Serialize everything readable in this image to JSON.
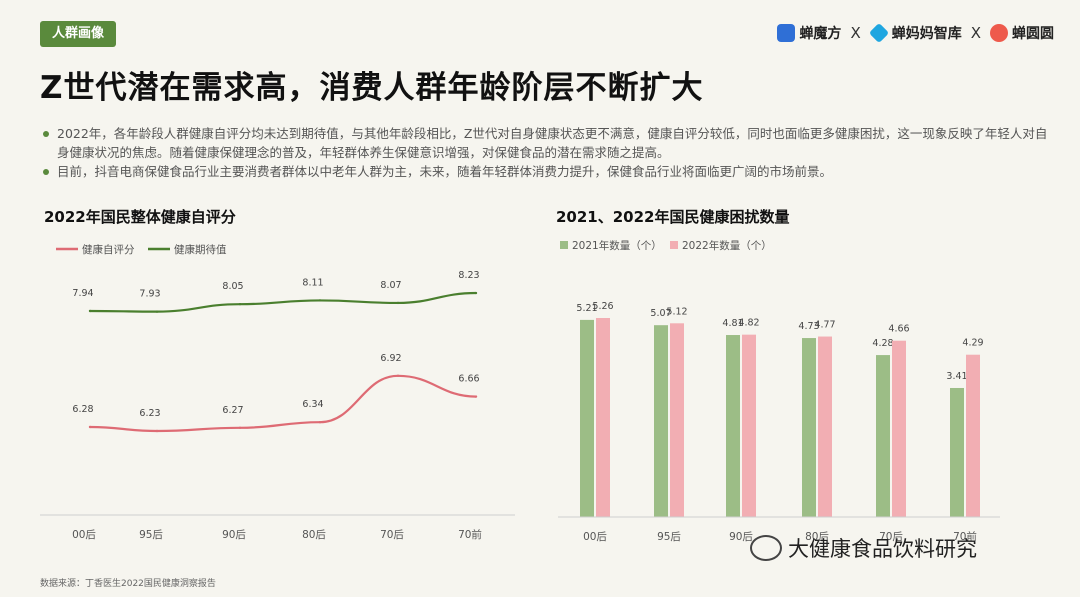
{
  "tag": "人群画像",
  "brands": [
    {
      "name": "蝉魔方",
      "color": "#2f6fd6",
      "icon": "cube-logo-icon"
    },
    {
      "name": "蝉妈妈智库",
      "color": "#1fa6e0",
      "icon": "diamond-logo-icon"
    },
    {
      "name": "蝉圆圆",
      "color": "#ee5a4c",
      "icon": "circle-logo-icon"
    }
  ],
  "separator": "X",
  "title": "Z世代潜在需求高，消费人群年龄阶层不断扩大",
  "bullets": [
    "2022年，各年龄段人群健康自评分均未达到期待值，与其他年龄段相比，Z世代对自身健康状态更不满意，健康自评分较低，同时也面临更多健康困扰，这一现象反映了年轻人对自身健康状况的焦虑。随着健康保健理念的普及，年轻群体养生保健意识增强，对保健食品的潜在需求随之提高。",
    "目前，抖音电商保健食品行业主要消费者群体以中老年人群为主，未来，随着年轻群体消费力提升，保健食品行业将面临更广阔的市场前景。"
  ],
  "source": "数据来源：丁香医生2022国民健康洞察报告",
  "watermark": "大健康食品饮料研究",
  "chart_data": [
    {
      "type": "line",
      "title": "2022年国民整体健康自评分",
      "categories": [
        "00后",
        "95后",
        "90后",
        "80后",
        "70后",
        "70前"
      ],
      "series": [
        {
          "name": "健康自评分",
          "color": "#de6b74",
          "values": [
            6.28,
            6.23,
            6.27,
            6.34,
            6.92,
            6.66
          ]
        },
        {
          "name": "健康期待值",
          "color": "#4a7f2e",
          "values": [
            7.94,
            7.93,
            8.05,
            8.11,
            8.07,
            8.23
          ]
        }
      ],
      "legend": "top-left",
      "grid": false
    },
    {
      "type": "bar",
      "title": "2021、2022年国民健康困扰数量",
      "categories": [
        "00后",
        "95后",
        "90后",
        "80后",
        "70后",
        "70前"
      ],
      "series": [
        {
          "name": "2021年数量（个）",
          "color": "#9cbd86",
          "values": [
            5.21,
            5.07,
            4.81,
            4.73,
            4.28,
            3.41
          ]
        },
        {
          "name": "2022年数量（个）",
          "color": "#f2aeb3",
          "values": [
            5.26,
            5.12,
            4.82,
            4.77,
            4.66,
            4.29
          ]
        }
      ],
      "legend": "top-left",
      "ylim": [
        0,
        5.5
      ],
      "grid": false
    }
  ]
}
